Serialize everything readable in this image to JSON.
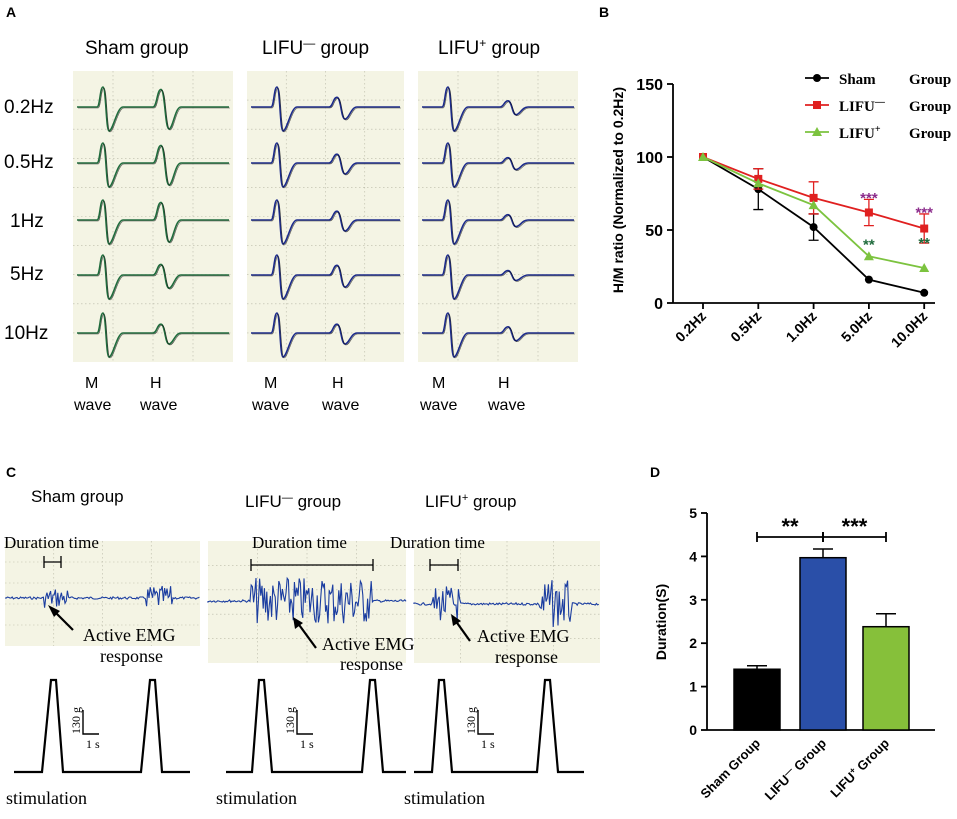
{
  "panels": {
    "a": {
      "letter": "A",
      "groups": [
        "Sham group",
        "LIFU",
        "LIFU"
      ],
      "group_suffix": " group",
      "frequencies": [
        "0.2Hz",
        "0.5Hz",
        "1Hz",
        "5Hz",
        "10Hz"
      ],
      "wave_labels": {
        "m_top": "M",
        "m_bottom": "wave",
        "h_top": "H",
        "h_bottom": "wave"
      },
      "trace_colors": {
        "sham": "#1f6b3c",
        "lifu_minus": "#1b2a8a",
        "lifu_plus": "#1b2a8a"
      }
    },
    "b": {
      "letter": "B"
    },
    "c": {
      "letter": "C",
      "groups": [
        "Sham group",
        "LIFU",
        "LIFU"
      ],
      "group_suffix": " group",
      "duration_label": "Duration time",
      "emg_label_1": "Active EMG",
      "emg_label_2": "response",
      "scale_v": "130 g",
      "scale_h": "1 s",
      "stimulation_label": "stimulation",
      "emg_color": "#1b3da0"
    },
    "d": {
      "letter": "D"
    }
  },
  "chart_data": [
    {
      "type": "line",
      "panel": "B",
      "ylabel": "H/M ratio (Normalized to 0.2Hz)",
      "xlabel": "",
      "categories": [
        "0.2Hz",
        "0.5Hz",
        "1.0Hz",
        "5.0Hz",
        "10.0Hz"
      ],
      "ylim": [
        0,
        150
      ],
      "yticks": [
        0,
        50,
        100,
        150
      ],
      "series": [
        {
          "name": "Sham",
          "legend_suffix": "Group",
          "color": "#000000",
          "marker": "circle",
          "values": [
            100,
            78,
            52,
            16,
            7
          ],
          "errors": [
            0,
            14,
            9,
            0,
            0
          ]
        },
        {
          "name": "LIFU",
          "legend_suffix": "Group",
          "color": "#e02020",
          "marker": "square",
          "values": [
            100,
            85,
            72,
            62,
            51
          ],
          "errors": [
            0,
            7,
            11,
            9,
            10
          ]
        },
        {
          "name": "LIFU",
          "legend_suffix": "Group",
          "color": "#7cc33f",
          "marker": "triangle",
          "values": [
            100,
            82,
            67,
            32,
            24
          ],
          "errors": [
            0,
            0,
            0,
            0,
            0
          ]
        }
      ],
      "annotations": [
        {
          "text": "***",
          "category": "5.0Hz",
          "color": "#8b2b8b",
          "y": 72
        },
        {
          "text": "**",
          "category": "5.0Hz",
          "color": "#1f6b3c",
          "y": 40
        },
        {
          "text": "***",
          "category": "10.0Hz",
          "color": "#8b2b8b",
          "y": 62
        },
        {
          "text": "**",
          "category": "10.0Hz",
          "color": "#1f6b3c",
          "y": 41
        }
      ],
      "legend_position": "top-right"
    },
    {
      "type": "bar",
      "panel": "D",
      "ylabel": "Duration(S)",
      "categories": [
        "Sham Group",
        "LIFU",
        "LIFU"
      ],
      "category_suffix": " Group",
      "values": [
        1.4,
        3.97,
        2.38
      ],
      "errors": [
        0.08,
        0.2,
        0.3
      ],
      "colors": [
        "#000000",
        "#2a4fa8",
        "#86c03a"
      ],
      "ylim": [
        0,
        5
      ],
      "yticks": [
        0,
        1,
        2,
        3,
        4,
        5
      ],
      "significance": [
        {
          "from": 0,
          "to": 1,
          "label": "**"
        },
        {
          "from": 1,
          "to": 2,
          "label": "***"
        }
      ]
    }
  ]
}
